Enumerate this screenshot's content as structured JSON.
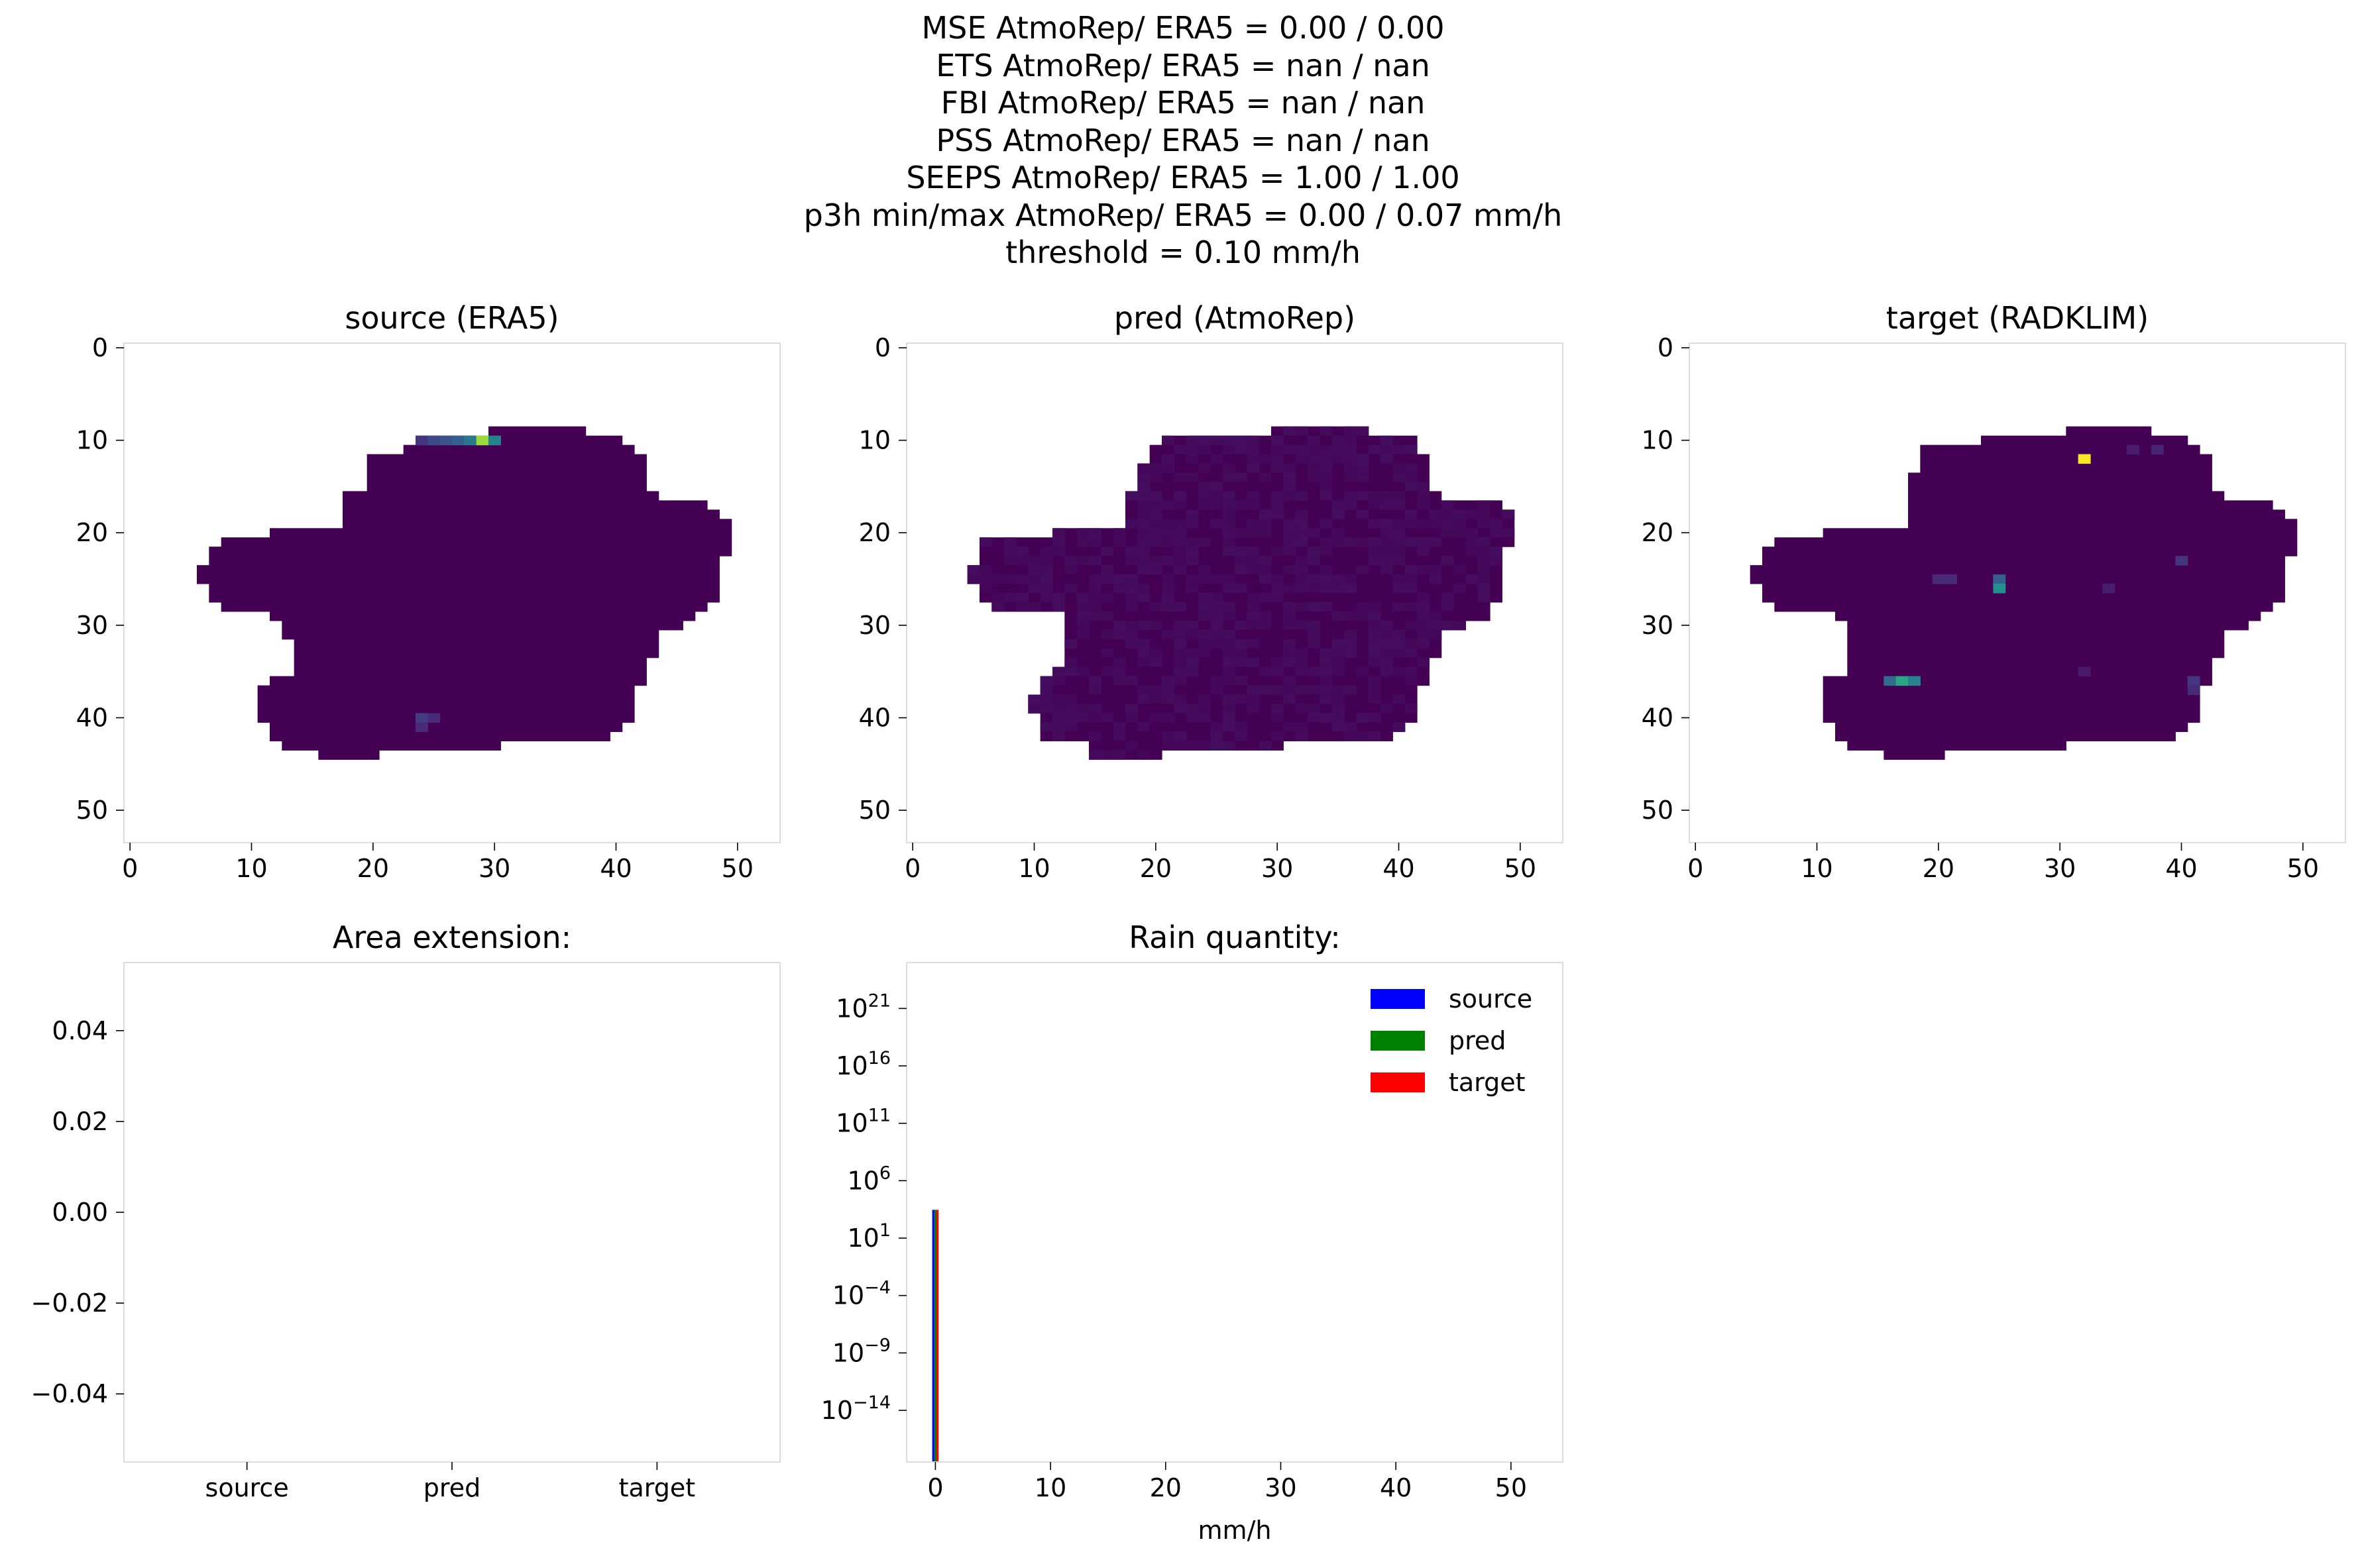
{
  "figure": {
    "suptitle_lines": [
      "MSE AtmoRep/ ERA5 = 0.00 / 0.00",
      "ETS AtmoRep/ ERA5 = nan / nan",
      "FBI AtmoRep/ ERA5 = nan / nan",
      "PSS AtmoRep/ ERA5 = nan / nan",
      "SEEPS AtmoRep/ ERA5 = 1.00 / 1.00",
      "p3h min/max AtmoRep/ ERA5 = 0.00 / 0.07 mm/h",
      "threshold = 0.10 mm/h"
    ]
  },
  "chart_data": [
    {
      "type": "heatmap",
      "title": "source (ERA5)",
      "xlabel": "",
      "ylabel": "",
      "colormap": "viridis",
      "grid": false,
      "xlim": [
        -0.5,
        53.5
      ],
      "ylim": [
        53.5,
        -0.5
      ],
      "xticks": [
        0,
        10,
        20,
        30,
        40,
        50
      ],
      "yticks": [
        0,
        10,
        20,
        30,
        40,
        50
      ],
      "nrows": 54,
      "ncols": 54,
      "mask_rows": [
        [
          9,
          30,
          37
        ],
        [
          10,
          24,
          40
        ],
        [
          11,
          23,
          41
        ],
        [
          12,
          20,
          42
        ],
        [
          13,
          20,
          42
        ],
        [
          14,
          20,
          42
        ],
        [
          15,
          20,
          42
        ],
        [
          16,
          18,
          43
        ],
        [
          17,
          18,
          47
        ],
        [
          18,
          18,
          48
        ],
        [
          19,
          18,
          49
        ],
        [
          20,
          12,
          49
        ],
        [
          21,
          8,
          49
        ],
        [
          22,
          7,
          49
        ],
        [
          23,
          7,
          48
        ],
        [
          24,
          6,
          48
        ],
        [
          25,
          6,
          48
        ],
        [
          26,
          7,
          48
        ],
        [
          27,
          7,
          48
        ],
        [
          28,
          8,
          47
        ],
        [
          29,
          12,
          46
        ],
        [
          30,
          13,
          45
        ],
        [
          31,
          13,
          43
        ],
        [
          32,
          14,
          43
        ],
        [
          33,
          14,
          43
        ],
        [
          34,
          14,
          42
        ],
        [
          35,
          14,
          42
        ],
        [
          36,
          12,
          42
        ],
        [
          37,
          11,
          41
        ],
        [
          38,
          11,
          41
        ],
        [
          39,
          11,
          41
        ],
        [
          40,
          11,
          41
        ],
        [
          41,
          12,
          40
        ],
        [
          42,
          12,
          39
        ],
        [
          43,
          13,
          30
        ],
        [
          44,
          16,
          20
        ]
      ],
      "highlights": [
        {
          "row": 10,
          "col": 24,
          "value": 0.15
        },
        {
          "row": 10,
          "col": 25,
          "value": 0.22
        },
        {
          "row": 10,
          "col": 26,
          "value": 0.25
        },
        {
          "row": 10,
          "col": 27,
          "value": 0.3
        },
        {
          "row": 10,
          "col": 28,
          "value": 0.4
        },
        {
          "row": 10,
          "col": 29,
          "value": 0.85
        },
        {
          "row": 10,
          "col": 30,
          "value": 0.45
        },
        {
          "row": 40,
          "col": 24,
          "value": 0.18
        },
        {
          "row": 40,
          "col": 25,
          "value": 0.12
        },
        {
          "row": 41,
          "col": 24,
          "value": 0.12
        }
      ],
      "noise": 0
    },
    {
      "type": "heatmap",
      "title": "pred (AtmoRep)",
      "xlabel": "",
      "ylabel": "",
      "colormap": "viridis",
      "grid": false,
      "xlim": [
        -0.5,
        53.5
      ],
      "ylim": [
        53.5,
        -0.5
      ],
      "xticks": [
        0,
        10,
        20,
        30,
        40,
        50
      ],
      "yticks": [
        0,
        10,
        20,
        30,
        40,
        50
      ],
      "nrows": 54,
      "ncols": 54,
      "mask_rows": [
        [
          9,
          30,
          37
        ],
        [
          10,
          21,
          41
        ],
        [
          11,
          20,
          41
        ],
        [
          12,
          20,
          42
        ],
        [
          13,
          19,
          42
        ],
        [
          14,
          19,
          42
        ],
        [
          15,
          19,
          42
        ],
        [
          16,
          18,
          43
        ],
        [
          17,
          18,
          48
        ],
        [
          18,
          18,
          49
        ],
        [
          19,
          18,
          49
        ],
        [
          20,
          12,
          49
        ],
        [
          21,
          6,
          49
        ],
        [
          22,
          6,
          48
        ],
        [
          23,
          6,
          48
        ],
        [
          24,
          5,
          48
        ],
        [
          25,
          5,
          48
        ],
        [
          26,
          6,
          48
        ],
        [
          27,
          6,
          48
        ],
        [
          28,
          7,
          47
        ],
        [
          29,
          13,
          47
        ],
        [
          30,
          13,
          45
        ],
        [
          31,
          13,
          43
        ],
        [
          32,
          13,
          43
        ],
        [
          33,
          13,
          43
        ],
        [
          34,
          13,
          42
        ],
        [
          35,
          12,
          42
        ],
        [
          36,
          11,
          42
        ],
        [
          37,
          11,
          41
        ],
        [
          38,
          10,
          41
        ],
        [
          39,
          10,
          41
        ],
        [
          40,
          11,
          41
        ],
        [
          41,
          11,
          40
        ],
        [
          42,
          11,
          39
        ],
        [
          43,
          15,
          30
        ],
        [
          44,
          15,
          20
        ]
      ],
      "highlights": [],
      "noise": 0.035
    },
    {
      "type": "heatmap",
      "title": "target (RADKLIM)",
      "xlabel": "",
      "ylabel": "",
      "colormap": "viridis",
      "grid": false,
      "xlim": [
        -0.5,
        53.5
      ],
      "ylim": [
        53.5,
        -0.5
      ],
      "xticks": [
        0,
        10,
        20,
        30,
        40,
        50
      ],
      "yticks": [
        0,
        10,
        20,
        30,
        40,
        50
      ],
      "nrows": 54,
      "ncols": 54,
      "mask_rows": [
        [
          9,
          31,
          37
        ],
        [
          10,
          24,
          40
        ],
        [
          11,
          19,
          41
        ],
        [
          12,
          19,
          42
        ],
        [
          13,
          19,
          42
        ],
        [
          14,
          18,
          42
        ],
        [
          15,
          18,
          42
        ],
        [
          16,
          18,
          43
        ],
        [
          17,
          18,
          47
        ],
        [
          18,
          18,
          48
        ],
        [
          19,
          18,
          49
        ],
        [
          20,
          11,
          49
        ],
        [
          21,
          7,
          49
        ],
        [
          22,
          6,
          49
        ],
        [
          23,
          6,
          48
        ],
        [
          24,
          5,
          48
        ],
        [
          25,
          5,
          48
        ],
        [
          26,
          6,
          48
        ],
        [
          27,
          6,
          48
        ],
        [
          28,
          7,
          47
        ],
        [
          29,
          12,
          46
        ],
        [
          30,
          13,
          45
        ],
        [
          31,
          13,
          43
        ],
        [
          32,
          13,
          43
        ],
        [
          33,
          13,
          43
        ],
        [
          34,
          13,
          42
        ],
        [
          35,
          13,
          42
        ],
        [
          36,
          11,
          42
        ],
        [
          37,
          11,
          41
        ],
        [
          38,
          11,
          41
        ],
        [
          39,
          11,
          41
        ],
        [
          40,
          11,
          41
        ],
        [
          41,
          12,
          40
        ],
        [
          42,
          12,
          39
        ],
        [
          43,
          13,
          30
        ],
        [
          44,
          16,
          20
        ]
      ],
      "highlights": [
        {
          "row": 12,
          "col": 32,
          "value": 1.0
        },
        {
          "row": 11,
          "col": 36,
          "value": 0.08
        },
        {
          "row": 11,
          "col": 38,
          "value": 0.1
        },
        {
          "row": 25,
          "col": 20,
          "value": 0.12
        },
        {
          "row": 25,
          "col": 21,
          "value": 0.12
        },
        {
          "row": 25,
          "col": 25,
          "value": 0.3
        },
        {
          "row": 26,
          "col": 25,
          "value": 0.5
        },
        {
          "row": 23,
          "col": 40,
          "value": 0.15
        },
        {
          "row": 26,
          "col": 34,
          "value": 0.08
        },
        {
          "row": 35,
          "col": 32,
          "value": 0.07
        },
        {
          "row": 36,
          "col": 16,
          "value": 0.35
        },
        {
          "row": 36,
          "col": 17,
          "value": 0.6
        },
        {
          "row": 36,
          "col": 18,
          "value": 0.45
        },
        {
          "row": 36,
          "col": 41,
          "value": 0.15
        },
        {
          "row": 37,
          "col": 41,
          "value": 0.12
        }
      ],
      "noise": 0
    },
    {
      "type": "bar",
      "title": "Area extension:",
      "xlabel": "",
      "ylabel": "",
      "categories": [
        "source",
        "pred",
        "target"
      ],
      "values": [
        0,
        0,
        0
      ],
      "ylim": [
        -0.055,
        0.055
      ],
      "yticks": [
        0.04,
        0.02,
        0.0,
        -0.02,
        -0.04
      ],
      "ytick_labels": [
        "0.04",
        "0.02",
        "0.00",
        "−0.02",
        "−0.04"
      ],
      "grid": false
    },
    {
      "type": "bar",
      "title": "Rain quantity:",
      "xlabel": "mm/h",
      "ylabel": "",
      "yscale": "log",
      "xlim": [
        -2.5,
        54.5
      ],
      "ylim_log10": [
        -18.5,
        25.0
      ],
      "xticks": [
        0,
        10,
        20,
        30,
        40,
        50
      ],
      "yticks": [
        {
          "base": "10",
          "exp": "21",
          "log10": 21
        },
        {
          "base": "10",
          "exp": "16",
          "log10": 16
        },
        {
          "base": "10",
          "exp": "11",
          "log10": 11
        },
        {
          "base": "10",
          "exp": "6",
          "log10": 6
        },
        {
          "base": "10",
          "exp": "1",
          "log10": 1
        },
        {
          "base": "10",
          "exp": "−4",
          "log10": -4
        },
        {
          "base": "10",
          "exp": "−9",
          "log10": -9
        },
        {
          "base": "10",
          "exp": "−14",
          "log10": -14
        }
      ],
      "series": [
        {
          "name": "source",
          "color": "#0000ff",
          "x": [
            0.0
          ],
          "values": [
            2916
          ]
        },
        {
          "name": "pred",
          "color": "#008000",
          "x": [
            0.0
          ],
          "values": [
            2916
          ]
        },
        {
          "name": "target",
          "color": "#ff0000",
          "x": [
            0.0
          ],
          "values": [
            2916
          ]
        }
      ],
      "legend": "top-right",
      "grid": false
    }
  ]
}
